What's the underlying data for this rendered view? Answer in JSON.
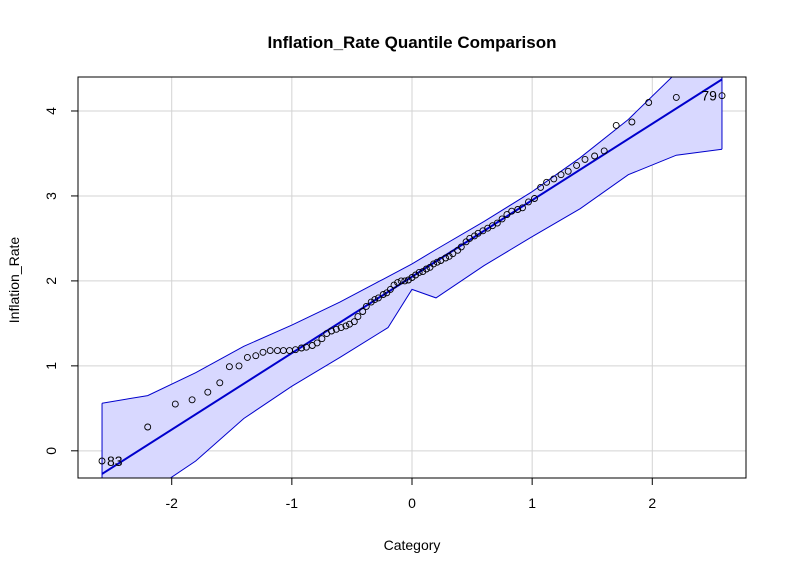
{
  "chart_data": {
    "type": "scatter",
    "title": "Inflation_Rate Quantile Comparison",
    "xlabel": "Category",
    "ylabel": "Inflation_Rate",
    "xlim": [
      -2.78,
      2.78
    ],
    "ylim": [
      -0.32,
      4.4
    ],
    "xticks": [
      "-2",
      "-1",
      "0",
      "1",
      "2"
    ],
    "yticks": [
      "0",
      "1",
      "2",
      "3",
      "4"
    ],
    "grid": true,
    "colors": {
      "points": "#000000",
      "line": "#0000cc",
      "band_fill": "#d8d8ff",
      "band_edge": "#0000cc",
      "grid": "#d3d3d3"
    },
    "reference_line": {
      "intercept": 2.05,
      "slope": 0.9
    },
    "confidence_band": {
      "x": [
        -2.58,
        -2.2,
        -1.8,
        -1.4,
        -1.0,
        -0.6,
        -0.2,
        0.0,
        0.2,
        0.6,
        1.0,
        1.4,
        1.8,
        2.2,
        2.58
      ],
      "upper": [
        0.56,
        0.65,
        0.92,
        1.23,
        1.48,
        1.75,
        2.05,
        2.2,
        2.37,
        2.7,
        3.05,
        3.45,
        3.9,
        4.45,
        4.72
      ],
      "lower": [
        -0.9,
        -0.5,
        -0.12,
        0.38,
        0.76,
        1.1,
        1.45,
        1.9,
        1.8,
        2.18,
        2.52,
        2.85,
        3.25,
        3.48,
        3.55
      ]
    },
    "points": {
      "x": [
        -2.58,
        -2.2,
        -1.97,
        -1.83,
        -1.7,
        -1.6,
        -1.52,
        -1.44,
        -1.37,
        -1.3,
        -1.24,
        -1.18,
        -1.12,
        -1.07,
        -1.02,
        -0.97,
        -0.92,
        -0.88,
        -0.83,
        -0.79,
        -0.75,
        -0.71,
        -0.67,
        -0.63,
        -0.59,
        -0.55,
        -0.52,
        -0.48,
        -0.45,
        -0.41,
        -0.38,
        -0.34,
        -0.31,
        -0.28,
        -0.24,
        -0.21,
        -0.18,
        -0.15,
        -0.12,
        -0.09,
        -0.06,
        -0.03,
        0.0,
        0.03,
        0.06,
        0.09,
        0.12,
        0.15,
        0.18,
        0.21,
        0.24,
        0.28,
        0.31,
        0.34,
        0.38,
        0.41,
        0.45,
        0.48,
        0.52,
        0.55,
        0.59,
        0.63,
        0.67,
        0.71,
        0.75,
        0.79,
        0.83,
        0.88,
        0.92,
        0.97,
        1.02,
        1.07,
        1.12,
        1.18,
        1.24,
        1.3,
        1.37,
        1.44,
        1.52,
        1.6,
        1.7,
        1.83,
        1.97,
        2.2,
        2.58
      ],
      "y": [
        -0.12,
        0.28,
        0.55,
        0.6,
        0.69,
        0.8,
        0.99,
        1.0,
        1.1,
        1.12,
        1.16,
        1.18,
        1.18,
        1.18,
        1.18,
        1.19,
        1.21,
        1.22,
        1.24,
        1.27,
        1.32,
        1.38,
        1.41,
        1.43,
        1.45,
        1.47,
        1.49,
        1.52,
        1.58,
        1.64,
        1.7,
        1.75,
        1.78,
        1.8,
        1.84,
        1.86,
        1.9,
        1.95,
        1.98,
        2.0,
        2.0,
        2.01,
        2.04,
        2.07,
        2.1,
        2.11,
        2.14,
        2.16,
        2.2,
        2.22,
        2.24,
        2.27,
        2.29,
        2.32,
        2.36,
        2.4,
        2.46,
        2.5,
        2.53,
        2.56,
        2.59,
        2.62,
        2.65,
        2.68,
        2.73,
        2.78,
        2.82,
        2.84,
        2.86,
        2.93,
        2.97,
        3.1,
        3.16,
        3.2,
        3.25,
        3.29,
        3.36,
        3.43,
        3.47,
        3.53,
        3.83,
        3.87,
        4.1,
        4.16,
        4.18
      ]
    },
    "annotations": [
      {
        "text": "83",
        "x": -2.58,
        "y": -0.12
      },
      {
        "text": "79",
        "x": 2.58,
        "y": 4.18
      }
    ]
  }
}
